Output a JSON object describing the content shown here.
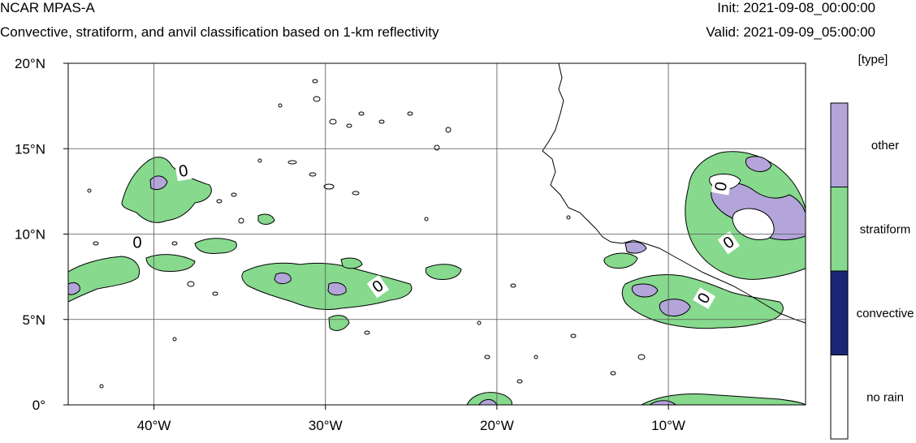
{
  "header": {
    "model_name": "NCAR MPAS-A",
    "description": "Convective, stratiform, and anvil classification based on 1-km reflectivity",
    "init": "Init: 2021-09-08_00:00:00",
    "valid": "Valid: 2021-09-09_05:00:00"
  },
  "map": {
    "lon_range": [
      -45,
      -2
    ],
    "lat_range": [
      0,
      20
    ],
    "lon_ticks": [
      {
        "lon": -40,
        "label": "40°W"
      },
      {
        "lon": -30,
        "label": "30°W"
      },
      {
        "lon": -20,
        "label": "20°W"
      },
      {
        "lon": -10,
        "label": "10°W"
      }
    ],
    "lat_ticks": [
      {
        "lat": 0,
        "label": "0°"
      },
      {
        "lat": 5,
        "label": "5°N"
      },
      {
        "lat": 10,
        "label": "10°N"
      },
      {
        "lat": 15,
        "label": "15°N"
      },
      {
        "lat": 20,
        "label": "20°N"
      }
    ],
    "gridlines": true,
    "contour_label": "0",
    "coastline_color": "#000000"
  },
  "colorbar": {
    "title": "[type]",
    "categories": [
      {
        "label": "other",
        "color": "#b3a5d9"
      },
      {
        "label": "stratiform",
        "color": "#86d98d"
      },
      {
        "label": "convective",
        "color": "#1a2777"
      },
      {
        "label": "no rain",
        "color": "#ffffff"
      }
    ]
  },
  "colors": {
    "other": "#b3a5d9",
    "stratiform": "#86d98d",
    "convective": "#1a2777",
    "no_rain": "#ffffff"
  }
}
